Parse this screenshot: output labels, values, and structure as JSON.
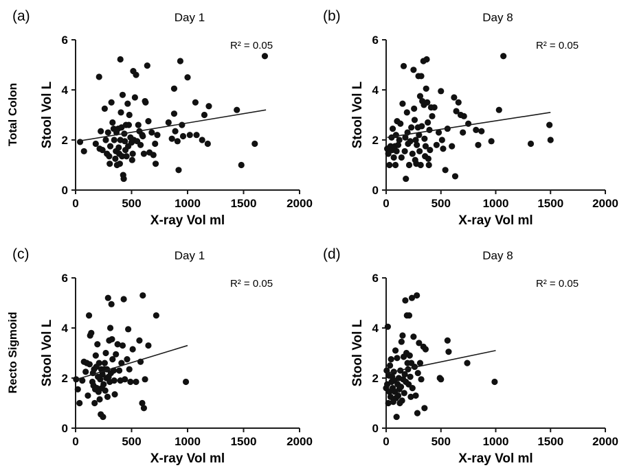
{
  "figure": {
    "row_labels": [
      "Total Colon",
      "Recto Sigmoid"
    ]
  },
  "chart_data": [
    {
      "type": "scatter",
      "panel_label": "(a)",
      "title": "Day 1",
      "xlabel": "X-ray Vol ml",
      "ylabel": "Stool Vol L",
      "row_label": "Total Colon",
      "annotation": "R² = 0.05",
      "xlim": [
        0,
        2000
      ],
      "ylim": [
        0,
        6
      ],
      "xticks": [
        0,
        500,
        1000,
        1500,
        2000
      ],
      "yticks": [
        0,
        2,
        4,
        6
      ],
      "trendline": {
        "x": [
          20,
          1700
        ],
        "y": [
          1.95,
          3.2
        ]
      },
      "points": [
        [
          40,
          1.92
        ],
        [
          75,
          1.55
        ],
        [
          180,
          1.85
        ],
        [
          210,
          4.52
        ],
        [
          215,
          1.65
        ],
        [
          225,
          2.35
        ],
        [
          240,
          1.6
        ],
        [
          260,
          3.25
        ],
        [
          270,
          2.0
        ],
        [
          280,
          1.45
        ],
        [
          290,
          2.3
        ],
        [
          300,
          1.35
        ],
        [
          305,
          1.05
        ],
        [
          310,
          1.75
        ],
        [
          320,
          3.5
        ],
        [
          330,
          2.7
        ],
        [
          340,
          2.45
        ],
        [
          345,
          2.0
        ],
        [
          355,
          1.25
        ],
        [
          360,
          1.55
        ],
        [
          365,
          2.3
        ],
        [
          370,
          1.0
        ],
        [
          380,
          2.45
        ],
        [
          385,
          1.7
        ],
        [
          390,
          1.45
        ],
        [
          395,
          1.05
        ],
        [
          400,
          5.22
        ],
        [
          400,
          2.0
        ],
        [
          405,
          3.1
        ],
        [
          410,
          2.5
        ],
        [
          415,
          1.35
        ],
        [
          420,
          3.8
        ],
        [
          425,
          0.6
        ],
        [
          430,
          0.45
        ],
        [
          435,
          2.25
        ],
        [
          440,
          1.95
        ],
        [
          445,
          1.6
        ],
        [
          450,
          2.6
        ],
        [
          455,
          1.35
        ],
        [
          465,
          3.45
        ],
        [
          470,
          1.75
        ],
        [
          475,
          2.6
        ],
        [
          480,
          3.0
        ],
        [
          490,
          2.1
        ],
        [
          500,
          1.9
        ],
        [
          505,
          1.2
        ],
        [
          510,
          1.45
        ],
        [
          515,
          4.75
        ],
        [
          520,
          2.0
        ],
        [
          530,
          3.7
        ],
        [
          540,
          4.6
        ],
        [
          550,
          1.95
        ],
        [
          560,
          2.6
        ],
        [
          570,
          2.35
        ],
        [
          580,
          1.8
        ],
        [
          595,
          2.2
        ],
        [
          600,
          2.15
        ],
        [
          610,
          1.45
        ],
        [
          620,
          3.55
        ],
        [
          625,
          3.5
        ],
        [
          640,
          4.97
        ],
        [
          650,
          2.75
        ],
        [
          660,
          1.5
        ],
        [
          680,
          2.3
        ],
        [
          695,
          1.4
        ],
        [
          710,
          1.85
        ],
        [
          715,
          1.05
        ],
        [
          730,
          2.2
        ],
        [
          830,
          2.7
        ],
        [
          860,
          2.05
        ],
        [
          880,
          4.05
        ],
        [
          880,
          3.05
        ],
        [
          890,
          2.35
        ],
        [
          910,
          1.95
        ],
        [
          920,
          0.8
        ],
        [
          935,
          5.15
        ],
        [
          950,
          2.6
        ],
        [
          960,
          2.15
        ],
        [
          1000,
          4.5
        ],
        [
          1020,
          2.2
        ],
        [
          1070,
          3.5
        ],
        [
          1080,
          2.2
        ],
        [
          1130,
          2.0
        ],
        [
          1150,
          3.0
        ],
        [
          1180,
          1.85
        ],
        [
          1190,
          3.35
        ],
        [
          1440,
          3.2
        ],
        [
          1480,
          1.0
        ],
        [
          1600,
          1.85
        ],
        [
          1690,
          5.35
        ]
      ]
    },
    {
      "type": "scatter",
      "panel_label": "(b)",
      "title": "Day 8",
      "xlabel": "X-ray Vol ml",
      "ylabel": "Stool Vol L",
      "annotation": "R² = 0.05",
      "xlim": [
        0,
        2000
      ],
      "ylim": [
        0,
        6
      ],
      "xticks": [
        0,
        500,
        1000,
        1500,
        2000
      ],
      "yticks": [
        0,
        2,
        4,
        6
      ],
      "trendline": {
        "x": [
          10,
          1500
        ],
        "y": [
          2.1,
          3.1
        ]
      },
      "points": [
        [
          10,
          1.65
        ],
        [
          20,
          1.45
        ],
        [
          30,
          1.0
        ],
        [
          40,
          1.75
        ],
        [
          50,
          2.1
        ],
        [
          55,
          1.6
        ],
        [
          60,
          2.45
        ],
        [
          70,
          1.3
        ],
        [
          80,
          1.75
        ],
        [
          85,
          1.0
        ],
        [
          90,
          2.2
        ],
        [
          95,
          1.55
        ],
        [
          100,
          2.75
        ],
        [
          110,
          1.8
        ],
        [
          120,
          2.0
        ],
        [
          130,
          2.65
        ],
        [
          140,
          1.3
        ],
        [
          150,
          3.45
        ],
        [
          160,
          4.95
        ],
        [
          170,
          1.55
        ],
        [
          175,
          2.1
        ],
        [
          180,
          0.45
        ],
        [
          190,
          3.1
        ],
        [
          195,
          2.3
        ],
        [
          200,
          1.85
        ],
        [
          210,
          1.0
        ],
        [
          220,
          1.95
        ],
        [
          230,
          2.5
        ],
        [
          240,
          1.45
        ],
        [
          250,
          4.8
        ],
        [
          255,
          3.25
        ],
        [
          260,
          2.8
        ],
        [
          265,
          1.2
        ],
        [
          270,
          2.0
        ],
        [
          275,
          1.05
        ],
        [
          280,
          1.8
        ],
        [
          290,
          2.5
        ],
        [
          295,
          4.55
        ],
        [
          300,
          2.2
        ],
        [
          305,
          1.55
        ],
        [
          310,
          3.75
        ],
        [
          315,
          1.0
        ],
        [
          320,
          4.55
        ],
        [
          325,
          2.55
        ],
        [
          330,
          3.55
        ],
        [
          340,
          5.15
        ],
        [
          345,
          3.4
        ],
        [
          350,
          2.05
        ],
        [
          355,
          1.35
        ],
        [
          360,
          1.75
        ],
        [
          365,
          4.05
        ],
        [
          370,
          5.22
        ],
        [
          375,
          3.5
        ],
        [
          380,
          2.7
        ],
        [
          385,
          1.25
        ],
        [
          390,
          1.0
        ],
        [
          395,
          2.4
        ],
        [
          400,
          1.6
        ],
        [
          410,
          3.3
        ],
        [
          420,
          2.95
        ],
        [
          440,
          3.3
        ],
        [
          460,
          1.8
        ],
        [
          480,
          2.3
        ],
        [
          500,
          3.95
        ],
        [
          510,
          2.0
        ],
        [
          520,
          1.65
        ],
        [
          540,
          0.8
        ],
        [
          560,
          2.45
        ],
        [
          600,
          1.75
        ],
        [
          620,
          3.7
        ],
        [
          630,
          0.55
        ],
        [
          640,
          3.15
        ],
        [
          660,
          3.5
        ],
        [
          680,
          3.0
        ],
        [
          700,
          2.3
        ],
        [
          710,
          2.95
        ],
        [
          750,
          2.65
        ],
        [
          820,
          2.4
        ],
        [
          840,
          1.8
        ],
        [
          870,
          2.35
        ],
        [
          960,
          1.95
        ],
        [
          1030,
          3.2
        ],
        [
          1070,
          5.35
        ],
        [
          1320,
          1.85
        ],
        [
          1490,
          2.6
        ],
        [
          1500,
          2.0
        ]
      ]
    },
    {
      "type": "scatter",
      "panel_label": "(c)",
      "title": "Day 1",
      "xlabel": "X-ray Vol ml",
      "ylabel": "Stool Vol L",
      "row_label": "Recto Sigmoid",
      "annotation": "R² = 0.05",
      "xlim": [
        0,
        2000
      ],
      "ylim": [
        0,
        6
      ],
      "xticks": [
        0,
        500,
        1000,
        1500,
        2000
      ],
      "yticks": [
        0,
        2,
        4,
        6
      ],
      "trendline": {
        "x": [
          10,
          1000
        ],
        "y": [
          1.95,
          3.3
        ]
      },
      "points": [
        [
          5,
          1.95
        ],
        [
          20,
          1.55
        ],
        [
          35,
          1.0
        ],
        [
          60,
          1.9
        ],
        [
          75,
          2.65
        ],
        [
          90,
          2.25
        ],
        [
          100,
          2.6
        ],
        [
          110,
          1.3
        ],
        [
          120,
          4.5
        ],
        [
          125,
          2.55
        ],
        [
          130,
          3.7
        ],
        [
          140,
          3.8
        ],
        [
          150,
          1.85
        ],
        [
          155,
          2.2
        ],
        [
          160,
          1.7
        ],
        [
          165,
          2.35
        ],
        [
          170,
          1.0
        ],
        [
          175,
          1.55
        ],
        [
          180,
          2.9
        ],
        [
          185,
          2.45
        ],
        [
          190,
          1.6
        ],
        [
          195,
          3.35
        ],
        [
          200,
          2.05
        ],
        [
          205,
          1.45
        ],
        [
          210,
          2.6
        ],
        [
          215,
          1.15
        ],
        [
          220,
          1.95
        ],
        [
          225,
          0.55
        ],
        [
          230,
          2.35
        ],
        [
          235,
          1.6
        ],
        [
          240,
          2.15
        ],
        [
          245,
          0.45
        ],
        [
          250,
          1.75
        ],
        [
          255,
          2.35
        ],
        [
          260,
          2.6
        ],
        [
          265,
          1.5
        ],
        [
          270,
          3.0
        ],
        [
          275,
          2.0
        ],
        [
          280,
          2.35
        ],
        [
          285,
          1.25
        ],
        [
          290,
          5.2
        ],
        [
          295,
          2.05
        ],
        [
          300,
          3.5
        ],
        [
          305,
          1.85
        ],
        [
          310,
          4.0
        ],
        [
          315,
          2.2
        ],
        [
          320,
          4.95
        ],
        [
          325,
          3.55
        ],
        [
          330,
          2.75
        ],
        [
          340,
          2.3
        ],
        [
          345,
          1.9
        ],
        [
          350,
          1.35
        ],
        [
          360,
          2.95
        ],
        [
          375,
          3.35
        ],
        [
          390,
          2.3
        ],
        [
          400,
          1.9
        ],
        [
          410,
          2.6
        ],
        [
          420,
          3.3
        ],
        [
          430,
          5.15
        ],
        [
          440,
          1.95
        ],
        [
          460,
          2.75
        ],
        [
          470,
          3.95
        ],
        [
          480,
          2.35
        ],
        [
          490,
          1.85
        ],
        [
          510,
          3.15
        ],
        [
          540,
          1.85
        ],
        [
          570,
          3.5
        ],
        [
          580,
          2.65
        ],
        [
          595,
          1.0
        ],
        [
          600,
          5.3
        ],
        [
          610,
          0.8
        ],
        [
          620,
          1.95
        ],
        [
          650,
          3.3
        ],
        [
          720,
          4.5
        ],
        [
          985,
          1.85
        ]
      ]
    },
    {
      "type": "scatter",
      "panel_label": "(d)",
      "title": "Day 8",
      "xlabel": "X-ray Vol ml",
      "ylabel": "Stool Vol L",
      "annotation": "R² = 0.05",
      "xlim": [
        0,
        2000
      ],
      "ylim": [
        0,
        6
      ],
      "xticks": [
        0,
        500,
        1000,
        1500,
        2000
      ],
      "yticks": [
        0,
        2,
        4,
        6
      ],
      "trendline": {
        "x": [
          5,
          1000
        ],
        "y": [
          2.2,
          3.1
        ]
      },
      "points": [
        [
          0,
          1.6
        ],
        [
          5,
          2.3
        ],
        [
          10,
          1.75
        ],
        [
          15,
          4.05
        ],
        [
          20,
          1.0
        ],
        [
          25,
          2.1
        ],
        [
          30,
          1.45
        ],
        [
          35,
          2.5
        ],
        [
          40,
          1.25
        ],
        [
          45,
          2.75
        ],
        [
          50,
          1.85
        ],
        [
          55,
          2.05
        ],
        [
          60,
          1.6
        ],
        [
          65,
          1.05
        ],
        [
          70,
          2.25
        ],
        [
          75,
          1.9
        ],
        [
          80,
          1.45
        ],
        [
          85,
          3.1
        ],
        [
          90,
          1.2
        ],
        [
          95,
          0.45
        ],
        [
          100,
          2.8
        ],
        [
          105,
          1.75
        ],
        [
          110,
          1.3
        ],
        [
          115,
          2.0
        ],
        [
          120,
          1.55
        ],
        [
          125,
          1.0
        ],
        [
          130,
          2.3
        ],
        [
          135,
          1.65
        ],
        [
          140,
          3.45
        ],
        [
          145,
          1.1
        ],
        [
          150,
          3.7
        ],
        [
          155,
          1.95
        ],
        [
          160,
          2.85
        ],
        [
          165,
          1.4
        ],
        [
          170,
          2.15
        ],
        [
          175,
          5.1
        ],
        [
          180,
          1.85
        ],
        [
          185,
          3.0
        ],
        [
          190,
          4.5
        ],
        [
          195,
          2.6
        ],
        [
          200,
          2.35
        ],
        [
          205,
          1.75
        ],
        [
          210,
          4.5
        ],
        [
          215,
          2.9
        ],
        [
          220,
          2.05
        ],
        [
          225,
          1.25
        ],
        [
          230,
          2.6
        ],
        [
          235,
          5.2
        ],
        [
          240,
          1.6
        ],
        [
          250,
          3.65
        ],
        [
          260,
          2.45
        ],
        [
          270,
          1.3
        ],
        [
          280,
          5.3
        ],
        [
          285,
          0.6
        ],
        [
          290,
          2.2
        ],
        [
          300,
          3.4
        ],
        [
          310,
          2.6
        ],
        [
          320,
          1.95
        ],
        [
          340,
          3.25
        ],
        [
          350,
          0.8
        ],
        [
          360,
          3.15
        ],
        [
          490,
          2.0
        ],
        [
          500,
          1.95
        ],
        [
          560,
          3.5
        ],
        [
          570,
          3.05
        ],
        [
          740,
          2.6
        ],
        [
          990,
          1.85
        ]
      ]
    }
  ]
}
